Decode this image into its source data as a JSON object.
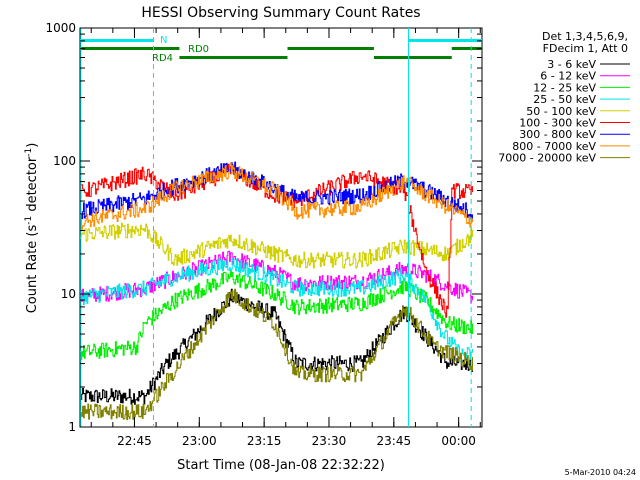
{
  "chart_data": {
    "type": "line",
    "title": "HESSI Observing Summary Count Rates",
    "xlabel": "Start Time (08-Jan-08 22:32:22)",
    "ylabel_main": "Count Rate (s",
    "ylabel_sup1": "-1",
    "ylabel_mid": " detector",
    "ylabel_sup2": "-1",
    "ylabel_end": ")",
    "yscale": "log",
    "ylim": [
      1,
      1000
    ],
    "xlim_minutes": [
      0,
      93
    ],
    "x_ticks": [
      {
        "label": "22:45",
        "minute": 12.6
      },
      {
        "label": "23:00",
        "minute": 27.6
      },
      {
        "label": "23:15",
        "minute": 42.6
      },
      {
        "label": "23:30",
        "minute": 57.6
      },
      {
        "label": "23:45",
        "minute": 72.6
      },
      {
        "label": "00:00",
        "minute": 87.6
      }
    ],
    "y_ticks": [
      {
        "label": "1",
        "value": 1
      },
      {
        "label": "10",
        "value": 10
      },
      {
        "label": "100",
        "value": 100
      },
      {
        "label": "1000",
        "value": 1000
      }
    ],
    "legend": {
      "position": "top-right",
      "header1": "Det 1,3,4,5,6,9,",
      "header2": "FDecim 1, Att 0"
    },
    "series": [
      {
        "name": "3 - 6 keV",
        "color": "#000000",
        "points": [
          [
            0,
            1.7
          ],
          [
            15,
            1.7
          ],
          [
            20,
            3
          ],
          [
            35,
            9.5
          ],
          [
            45,
            7
          ],
          [
            50,
            3
          ],
          [
            65,
            3
          ],
          [
            75,
            7.5
          ],
          [
            85,
            3
          ],
          [
            91,
            3
          ]
        ]
      },
      {
        "name": "6 - 12 keV",
        "color": "#ff00ff",
        "points": [
          [
            0,
            9.5
          ],
          [
            15,
            11
          ],
          [
            22,
            13.5
          ],
          [
            35,
            19
          ],
          [
            45,
            14.5
          ],
          [
            50,
            12
          ],
          [
            65,
            12.5
          ],
          [
            75,
            15.5
          ],
          [
            80,
            14
          ],
          [
            85,
            11.5
          ],
          [
            91,
            9.5
          ]
        ]
      },
      {
        "name": "12 - 25 keV",
        "color": "#00ee00",
        "points": [
          [
            0,
            3.6
          ],
          [
            13,
            4
          ],
          [
            15,
            6
          ],
          [
            22,
            9
          ],
          [
            35,
            13.5
          ],
          [
            45,
            10
          ],
          [
            50,
            8
          ],
          [
            65,
            8.5
          ],
          [
            75,
            11.5
          ],
          [
            80,
            9
          ],
          [
            85,
            6
          ],
          [
            91,
            5.5
          ]
        ]
      },
      {
        "name": "25 - 50 keV",
        "color": "#00e5e5",
        "points": [
          [
            0,
            9.5
          ],
          [
            15,
            11
          ],
          [
            22,
            13.5
          ],
          [
            35,
            17
          ],
          [
            45,
            13
          ],
          [
            50,
            11
          ],
          [
            65,
            11
          ],
          [
            75,
            14
          ],
          [
            80,
            9
          ],
          [
            84,
            5
          ],
          [
            88,
            3.5
          ],
          [
            91,
            3.5
          ]
        ]
      },
      {
        "name": "50 - 100 keV",
        "color": "#d0d000",
        "points": [
          [
            0,
            28
          ],
          [
            15,
            31
          ],
          [
            22,
            18
          ],
          [
            35,
            26
          ],
          [
            45,
            20
          ],
          [
            50,
            18
          ],
          [
            65,
            18
          ],
          [
            75,
            23
          ],
          [
            85,
            20
          ],
          [
            91,
            28
          ]
        ]
      },
      {
        "name": "100 - 300 keV",
        "color": "#ff0000",
        "points": [
          [
            0,
            58
          ],
          [
            15,
            80
          ],
          [
            22,
            55
          ],
          [
            35,
            85
          ],
          [
            45,
            55
          ],
          [
            50,
            50
          ],
          [
            65,
            78
          ],
          [
            75,
            60
          ],
          [
            80,
            15
          ],
          [
            85,
            7
          ],
          [
            86,
            60
          ],
          [
            91,
            58
          ]
        ]
      },
      {
        "name": "300 - 800 keV",
        "color": "#0000ff",
        "points": [
          [
            0,
            42
          ],
          [
            15,
            52
          ],
          [
            22,
            65
          ],
          [
            35,
            88
          ],
          [
            45,
            62
          ],
          [
            50,
            52
          ],
          [
            65,
            55
          ],
          [
            75,
            72
          ],
          [
            85,
            50
          ],
          [
            91,
            40
          ]
        ]
      },
      {
        "name": "800 - 7000 keV",
        "color": "#ff8c00",
        "points": [
          [
            0,
            35
          ],
          [
            15,
            44
          ],
          [
            22,
            62
          ],
          [
            35,
            85
          ],
          [
            45,
            60
          ],
          [
            50,
            42
          ],
          [
            65,
            45
          ],
          [
            75,
            70
          ],
          [
            85,
            45
          ],
          [
            91,
            35
          ]
        ]
      },
      {
        "name": "7000 - 20000 keV",
        "color": "#808000",
        "points": [
          [
            0,
            1.3
          ],
          [
            15,
            1.3
          ],
          [
            20,
            2.2
          ],
          [
            35,
            10
          ],
          [
            45,
            6
          ],
          [
            50,
            2.5
          ],
          [
            65,
            2.5
          ],
          [
            75,
            8
          ],
          [
            82,
            4
          ],
          [
            91,
            3
          ]
        ]
      }
    ],
    "annotations": {
      "night_label": "N",
      "rd0_label": "RD0",
      "rd4_label": "RD4",
      "night_bars": [
        [
          0,
          17
        ],
        [
          76,
          93
        ]
      ],
      "rd0_bars": [
        [
          0,
          23
        ],
        [
          48,
          68
        ],
        [
          86,
          93
        ]
      ],
      "rd4_bars": [
        [
          23,
          48
        ],
        [
          68,
          86
        ]
      ],
      "vertical_lines": [
        {
          "minute": 0.2,
          "style": "solid"
        },
        {
          "minute": 17,
          "style": "dashed"
        },
        {
          "minute": 76,
          "style": "solid"
        },
        {
          "minute": 90.5,
          "style": "dashed"
        }
      ]
    },
    "footer_date": "5-Mar-2010 04:24"
  }
}
